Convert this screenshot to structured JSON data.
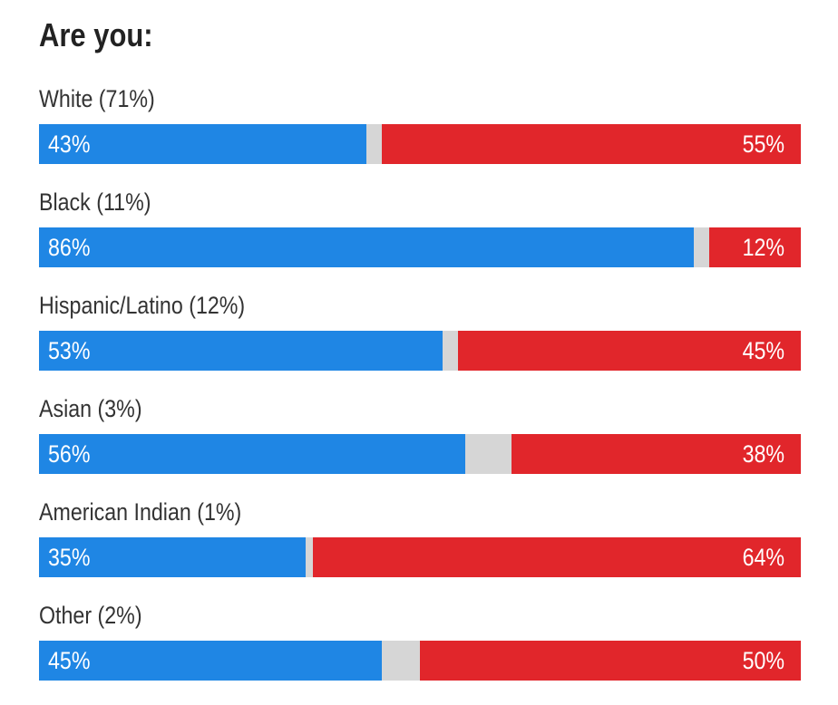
{
  "chart_data": {
    "type": "bar",
    "orientation": "horizontal-stacked",
    "title": "Are you:",
    "categories": [
      "White (71%)",
      "Black (11%)",
      "Hispanic/Latino (12%)",
      "Asian (3%)",
      "American Indian (1%)",
      "Other (2%)"
    ],
    "series": [
      {
        "values": [
          43,
          86,
          53,
          56,
          35,
          45
        ],
        "color": "#1f86e4",
        "labels": [
          "43%",
          "86%",
          "53%",
          "56%",
          "35%",
          "45%"
        ]
      },
      {
        "values": [
          55,
          12,
          45,
          38,
          64,
          50
        ],
        "color": "#e1262b",
        "labels": [
          "55%",
          "12%",
          "45%",
          "38%",
          "64%",
          "50%"
        ]
      }
    ],
    "remainder_color": "#d6d6d6",
    "xlim": [
      0,
      100
    ]
  }
}
